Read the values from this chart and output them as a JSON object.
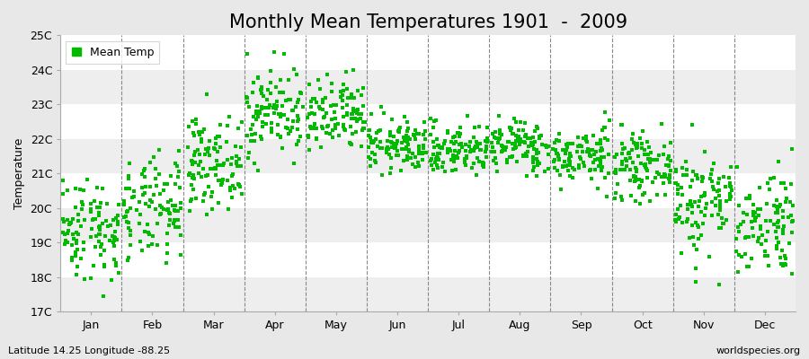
{
  "title": "Monthly Mean Temperatures 1901  -  2009",
  "ylabel": "Temperature",
  "ylim": [
    17,
    25
  ],
  "ytick_labels": [
    "17C",
    "18C",
    "19C",
    "20C",
    "21C",
    "22C",
    "23C",
    "24C",
    "25C"
  ],
  "ytick_values": [
    17,
    18,
    19,
    20,
    21,
    22,
    23,
    24,
    25
  ],
  "month_names": [
    "Jan",
    "Feb",
    "Mar",
    "Apr",
    "May",
    "Jun",
    "Jul",
    "Aug",
    "Sep",
    "Oct",
    "Nov",
    "Dec"
  ],
  "marker_color": "#00bb00",
  "figure_bg_color": "#e8e8e8",
  "plot_bg_color": "#ffffff",
  "band_color_odd": "#eeeeee",
  "band_color_even": "#ffffff",
  "legend_label": "Mean Temp",
  "footer_left": "Latitude 14.25 Longitude -88.25",
  "footer_right": "worldspecies.org",
  "n_years": 109,
  "monthly_means": [
    19.4,
    19.9,
    21.3,
    22.8,
    22.6,
    21.8,
    21.7,
    21.8,
    21.5,
    21.2,
    20.2,
    19.6
  ],
  "monthly_stds": [
    0.75,
    0.75,
    0.65,
    0.65,
    0.55,
    0.38,
    0.38,
    0.38,
    0.4,
    0.45,
    0.8,
    0.8
  ],
  "title_fontsize": 15,
  "axis_fontsize": 9,
  "tick_fontsize": 9,
  "footer_fontsize": 8,
  "marker_size": 9,
  "seed": 42
}
